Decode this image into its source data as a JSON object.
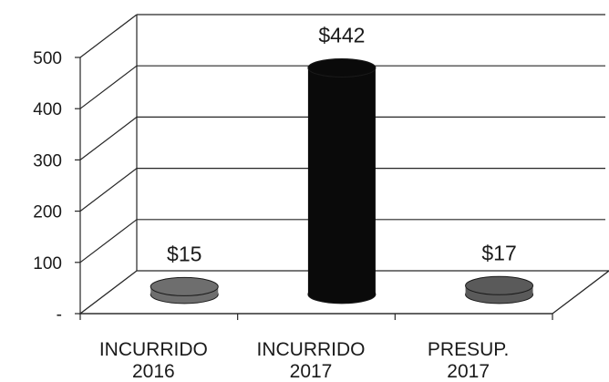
{
  "chart_data": {
    "type": "bar",
    "style": "3d-cylinder",
    "categories": [
      [
        "INCURRIDO",
        "2016"
      ],
      [
        "INCURRIDO",
        "2017"
      ],
      [
        "PRESUP.",
        "2017"
      ]
    ],
    "values": [
      15,
      442,
      17
    ],
    "data_labels": [
      "$15",
      "$442",
      "$17"
    ],
    "yticks": [
      "-",
      "100",
      "200",
      "300",
      "400",
      "500"
    ],
    "ylim": [
      0,
      500
    ],
    "grid": true,
    "legend": "none",
    "colors": {
      "INCURRIDO 2016": "#6e6e6e",
      "INCURRIDO 2017": "#0a0a0a",
      "PRESUP. 2017": "#5a5a5a",
      "gridline": "#262626"
    }
  }
}
